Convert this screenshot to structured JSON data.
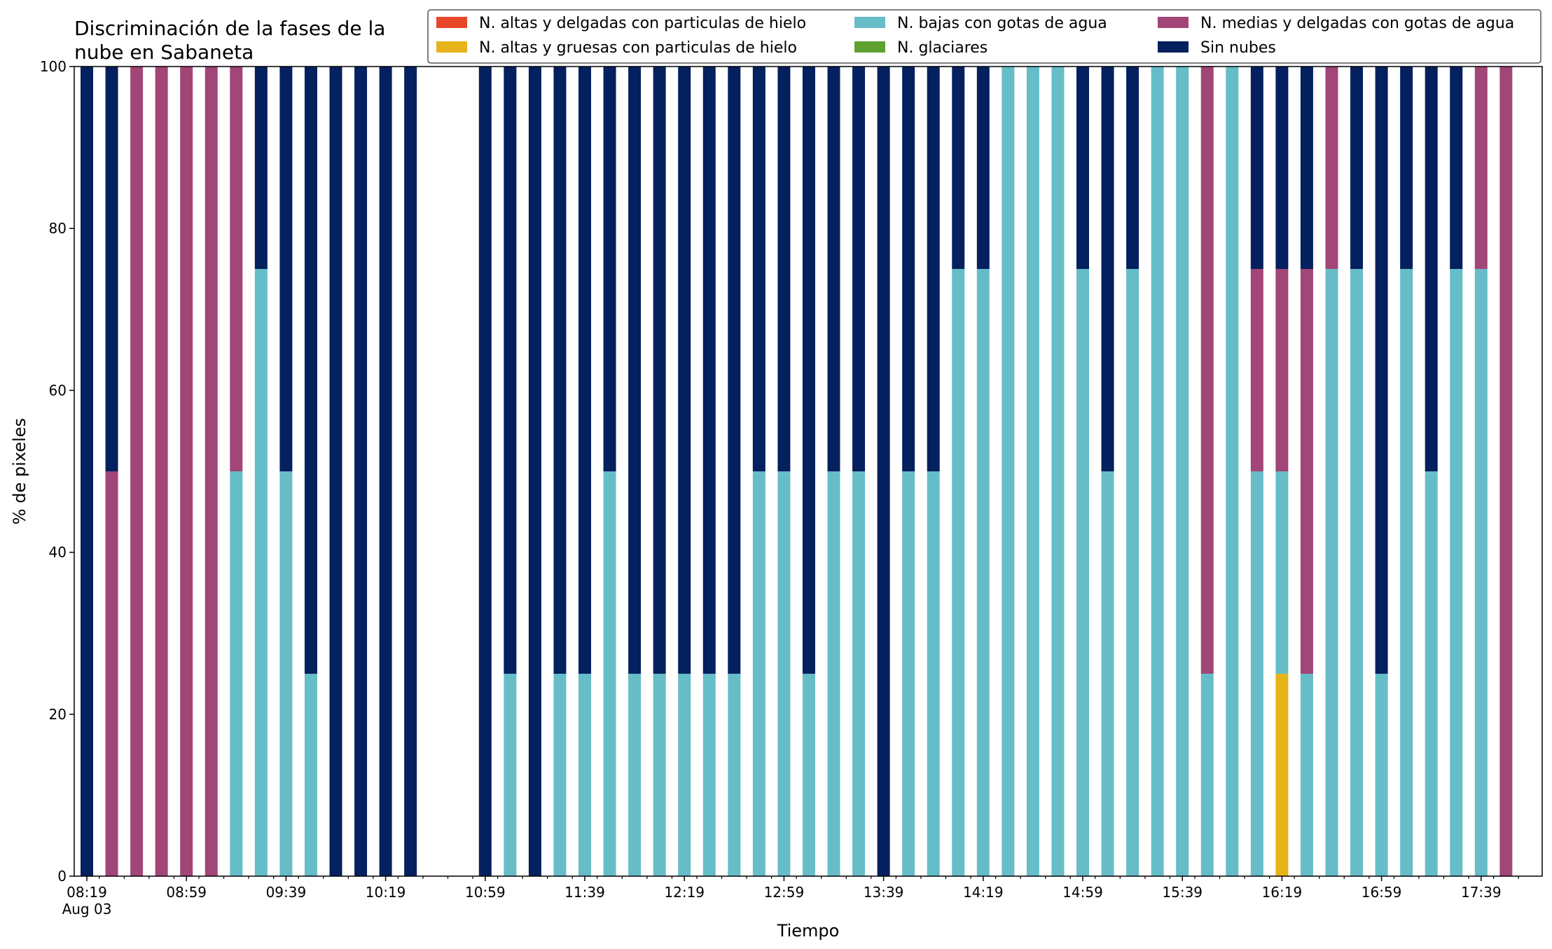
{
  "chart_data": {
    "type": "bar",
    "stacked": true,
    "title_lines": [
      "Discriminación de la fases de la",
      "nube en Sabaneta"
    ],
    "xlabel": "Tiempo",
    "ylabel": "% de pixeles",
    "ylim": [
      0,
      100
    ],
    "yticks": [
      0,
      20,
      40,
      60,
      80,
      100
    ],
    "grid": false,
    "legend_position": "top-right",
    "x_tick_labels": [
      {
        "index": 0,
        "label": "08:19",
        "sublabel": "Aug 03"
      },
      {
        "index": 4,
        "label": "08:59"
      },
      {
        "index": 8,
        "label": "09:39"
      },
      {
        "index": 12,
        "label": "10:19"
      },
      {
        "index": 16,
        "label": "10:59"
      },
      {
        "index": 20,
        "label": "11:39"
      },
      {
        "index": 24,
        "label": "12:19"
      },
      {
        "index": 28,
        "label": "12:59"
      },
      {
        "index": 32,
        "label": "13:39"
      },
      {
        "index": 36,
        "label": "14:19"
      },
      {
        "index": 40,
        "label": "14:59"
      },
      {
        "index": 44,
        "label": "15:39"
      },
      {
        "index": 48,
        "label": "16:19"
      },
      {
        "index": 52,
        "label": "16:59"
      },
      {
        "index": 56,
        "label": "17:39"
      }
    ],
    "categories": [
      "08:19",
      "08:29",
      "08:39",
      "08:49",
      "08:59",
      "09:09",
      "09:19",
      "09:29",
      "09:39",
      "09:49",
      "09:59",
      "10:09",
      "10:19",
      "10:29",
      "10:39",
      "10:49",
      "10:59",
      "11:09",
      "11:19",
      "11:29",
      "11:39",
      "11:49",
      "11:59",
      "12:09",
      "12:19",
      "12:29",
      "12:39",
      "12:49",
      "12:59",
      "13:09",
      "13:19",
      "13:29",
      "13:39",
      "13:49",
      "13:59",
      "14:09",
      "14:19",
      "14:29",
      "14:39",
      "14:49",
      "14:59",
      "15:09",
      "15:19",
      "15:29",
      "15:39",
      "15:49",
      "15:59",
      "16:09",
      "16:19",
      "16:29",
      "16:39",
      "16:49",
      "16:59",
      "17:09",
      "17:19",
      "17:29",
      "17:39",
      "17:49"
    ],
    "series": [
      {
        "name": "N. altas y delgadas con particulas de hielo",
        "color": "#e8472a",
        "values": [
          0,
          0,
          0,
          0,
          0,
          0,
          0,
          0,
          0,
          0,
          0,
          0,
          0,
          0,
          0,
          0,
          0,
          0,
          0,
          0,
          0,
          0,
          0,
          0,
          0,
          0,
          0,
          0,
          0,
          0,
          0,
          0,
          0,
          0,
          0,
          0,
          0,
          0,
          0,
          0,
          0,
          0,
          0,
          0,
          0,
          0,
          0,
          0,
          0,
          0,
          0,
          0,
          0,
          0,
          0,
          0,
          0,
          0
        ]
      },
      {
        "name": "N. altas y gruesas con particulas de hielo",
        "color": "#e6b41a",
        "values": [
          0,
          0,
          0,
          0,
          0,
          0,
          0,
          0,
          0,
          0,
          0,
          0,
          0,
          0,
          0,
          0,
          0,
          0,
          0,
          0,
          0,
          0,
          0,
          0,
          0,
          0,
          0,
          0,
          0,
          0,
          0,
          0,
          0,
          0,
          0,
          0,
          0,
          0,
          0,
          0,
          0,
          0,
          0,
          0,
          0,
          0,
          0,
          0,
          25,
          0,
          0,
          0,
          0,
          0,
          0,
          0,
          0,
          0
        ]
      },
      {
        "name": "N. bajas con gotas de agua",
        "color": "#66bdc8",
        "values": [
          0,
          0,
          0,
          0,
          0,
          0,
          50,
          75,
          50,
          25,
          0,
          0,
          0,
          0,
          null,
          null,
          0,
          25,
          0,
          25,
          25,
          50,
          25,
          25,
          25,
          25,
          25,
          50,
          50,
          25,
          50,
          50,
          0,
          50,
          50,
          75,
          75,
          100,
          100,
          100,
          75,
          50,
          75,
          100,
          100,
          25,
          100,
          50,
          25,
          25,
          75,
          75,
          25,
          75,
          50,
          75,
          75,
          0
        ]
      },
      {
        "name": "N. glaciares",
        "color": "#5ea12f",
        "values": [
          0,
          0,
          0,
          0,
          0,
          0,
          0,
          0,
          0,
          0,
          0,
          0,
          0,
          0,
          0,
          0,
          0,
          0,
          0,
          0,
          0,
          0,
          0,
          0,
          0,
          0,
          0,
          0,
          0,
          0,
          0,
          0,
          0,
          0,
          0,
          0,
          0,
          0,
          0,
          0,
          0,
          0,
          0,
          0,
          0,
          0,
          0,
          0,
          0,
          0,
          0,
          0,
          0,
          0,
          0,
          0,
          0,
          0
        ]
      },
      {
        "name": "N. medias y delgadas con gotas de agua",
        "color": "#a24577",
        "values": [
          0,
          50,
          100,
          100,
          100,
          100,
          50,
          0,
          0,
          0,
          0,
          0,
          0,
          0,
          null,
          null,
          0,
          0,
          0,
          0,
          0,
          0,
          0,
          0,
          0,
          0,
          0,
          0,
          0,
          0,
          0,
          0,
          0,
          0,
          0,
          0,
          0,
          0,
          0,
          0,
          0,
          0,
          0,
          0,
          0,
          75,
          0,
          25,
          25,
          50,
          25,
          0,
          0,
          0,
          0,
          0,
          25,
          100
        ]
      },
      {
        "name": "Sin nubes",
        "color": "#04205e",
        "values": [
          100,
          50,
          0,
          0,
          0,
          0,
          0,
          25,
          50,
          75,
          100,
          100,
          100,
          100,
          null,
          null,
          100,
          75,
          100,
          75,
          75,
          50,
          75,
          75,
          75,
          75,
          75,
          50,
          50,
          75,
          50,
          50,
          100,
          50,
          50,
          25,
          25,
          0,
          0,
          0,
          25,
          50,
          25,
          0,
          0,
          0,
          0,
          25,
          25,
          25,
          0,
          25,
          75,
          25,
          50,
          25,
          0,
          0
        ]
      }
    ]
  }
}
